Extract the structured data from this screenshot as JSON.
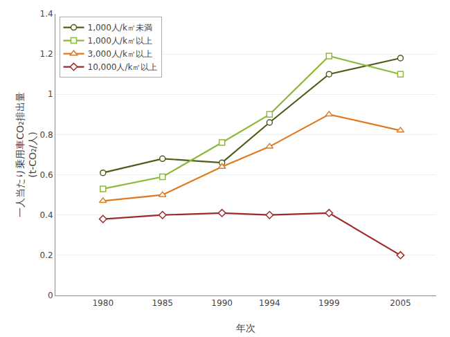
{
  "chart_data": {
    "type": "line",
    "xlabel": "年次",
    "ylabel": "一人当たり乗用車CO₂排出量\n(t-CO₂/人)",
    "x": [
      1980,
      1985,
      1990,
      1994,
      1999,
      2005
    ],
    "series": [
      {
        "name": "1,000人/k㎡未満",
        "color": "#4a5e1a",
        "marker": "circle",
        "values": [
          0.61,
          0.68,
          0.66,
          0.86,
          1.1,
          1.18
        ]
      },
      {
        "name": "1,000人/k㎡以上",
        "color": "#8db93a",
        "marker": "square",
        "values": [
          0.53,
          0.59,
          0.76,
          0.9,
          1.19,
          1.1
        ]
      },
      {
        "name": "3,000人/k㎡以上",
        "color": "#e07820",
        "marker": "triangle-up",
        "values": [
          0.47,
          0.5,
          0.64,
          0.74,
          0.9,
          0.82
        ]
      },
      {
        "name": "10,000人/k㎡以上",
        "color": "#9e2a2a",
        "marker": "diamond",
        "values": [
          0.38,
          0.4,
          0.41,
          0.4,
          0.41,
          0.2
        ]
      }
    ],
    "xlim": [
      1976,
      2008
    ],
    "xticks": [
      1980,
      1985,
      1990,
      1994,
      1999,
      2005
    ],
    "ylim": [
      0,
      1.4
    ],
    "yticks": [
      0,
      0.2,
      0.4,
      0.6,
      0.8,
      1,
      1.2,
      1.4
    ],
    "grid": "y",
    "legend": "upper left"
  }
}
